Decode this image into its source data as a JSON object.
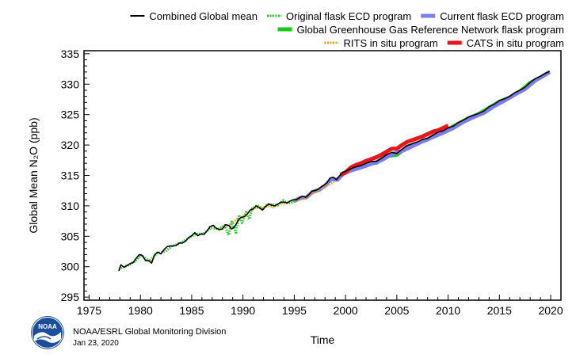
{
  "footer": {
    "organization": "NOAA/ESRL Global Monitoring Division",
    "date": "Jan 23, 2020",
    "logo_text": "NOAA"
  },
  "chart_data": {
    "type": "line",
    "title": "",
    "xlabel": "Time",
    "ylabel": "Global Mean N₂O (ppb)",
    "xlim": [
      1974.5,
      2021.0
    ],
    "ylim": [
      294.5,
      335.5
    ],
    "x_ticks": [
      1975,
      1980,
      1985,
      1990,
      1995,
      2000,
      2005,
      2010,
      2015,
      2020
    ],
    "y_ticks": [
      295,
      300,
      305,
      310,
      315,
      320,
      325,
      330,
      335
    ],
    "grid": false,
    "legend_position": "top-right",
    "series": [
      {
        "name": "Combined Global mean",
        "color": "#000000",
        "style": "solid",
        "x": [
          1977.9,
          1978.1,
          1978.4,
          1978.7,
          1979.0,
          1979.3,
          1979.6,
          1979.9,
          1980.2,
          1980.5,
          1980.8,
          1981.1,
          1981.4,
          1981.7,
          1982.0,
          1982.3,
          1982.6,
          1982.9,
          1983.2,
          1983.5,
          1983.8,
          1984.1,
          1984.4,
          1984.7,
          1985.0,
          1985.3,
          1985.6,
          1985.9,
          1986.2,
          1986.5,
          1986.8,
          1987.1,
          1987.4,
          1987.7,
          1988.0,
          1988.3,
          1988.6,
          1988.9,
          1989.2,
          1989.5,
          1989.8,
          1990.1,
          1990.4,
          1990.7,
          1991.0,
          1991.3,
          1991.6,
          1991.9,
          1992.2,
          1992.5,
          1992.8,
          1993.1,
          1993.4,
          1993.7,
          1994.0,
          1994.3,
          1994.6,
          1994.9,
          1995.2,
          1995.5,
          1995.8,
          1996.1,
          1996.4,
          1996.7,
          1997.0,
          1997.3,
          1997.6,
          1997.9,
          1998.2,
          1998.5,
          1998.8,
          1999.1,
          1999.4,
          1999.7,
          2000.0,
          2000.5,
          2001.0,
          2001.5,
          2002.0,
          2002.5,
          2003.0,
          2003.5,
          2004.0,
          2004.5,
          2005.0,
          2005.5,
          2006.0,
          2006.5,
          2007.0,
          2007.5,
          2008.0,
          2008.5,
          2009.0,
          2009.5,
          2010.0,
          2010.5,
          2011.0,
          2011.5,
          2012.0,
          2012.5,
          2013.0,
          2013.5,
          2014.0,
          2014.5,
          2015.0,
          2015.5,
          2016.0,
          2016.5,
          2017.0,
          2017.5,
          2018.0,
          2018.5,
          2019.0,
          2019.5,
          2019.9
        ],
        "y": [
          299.3,
          300.3,
          299.9,
          300.2,
          300.5,
          300.7,
          301.4,
          302.0,
          301.8,
          301.0,
          301.0,
          300.6,
          302.0,
          302.4,
          302.1,
          302.8,
          303.3,
          303.4,
          303.4,
          303.5,
          303.9,
          303.9,
          304.2,
          304.8,
          305.1,
          305.6,
          305.1,
          305.4,
          305.3,
          305.9,
          306.6,
          306.8,
          306.3,
          306.1,
          306.2,
          306.9,
          306.8,
          306.2,
          306.6,
          307.5,
          308.1,
          308.2,
          308.6,
          309.3,
          309.5,
          310.0,
          309.7,
          309.3,
          309.9,
          310.3,
          310.1,
          310.0,
          310.3,
          310.6,
          310.6,
          310.5,
          310.8,
          311.0,
          311.0,
          311.3,
          311.6,
          311.4,
          311.8,
          312.4,
          312.5,
          312.7,
          313.1,
          313.4,
          313.8,
          314.6,
          314.7,
          314.3,
          314.9,
          315.5,
          315.7,
          316.1,
          316.4,
          316.6,
          317.0,
          317.3,
          317.3,
          317.8,
          318.4,
          318.8,
          318.6,
          319.3,
          319.9,
          320.2,
          320.5,
          320.9,
          321.1,
          321.6,
          322.1,
          322.3,
          322.8,
          323.1,
          323.7,
          324.1,
          324.6,
          324.9,
          325.2,
          325.6,
          326.3,
          326.7,
          327.3,
          327.6,
          328.0,
          328.6,
          329.0,
          329.5,
          330.3,
          330.9,
          331.3,
          331.8,
          332.1
        ]
      },
      {
        "name": "Original flask ECD program",
        "color": "#22cc22",
        "style": "dotted",
        "x": [
          1977.9,
          1978.6,
          1979.4,
          1980.1,
          1980.9,
          1981.6,
          1982.4,
          1983.1,
          1983.9,
          1984.6,
          1985.4,
          1986.1,
          1986.9,
          1987.6,
          1988.2,
          1988.6,
          1988.9,
          1989.3,
          1989.6,
          1989.9,
          1990.3,
          1990.6,
          1990.9,
          1991.4,
          1991.9,
          1992.4,
          1992.9,
          1993.4,
          1993.9,
          1994.4,
          1994.9,
          1995.3
        ],
        "y": [
          299.6,
          300.1,
          300.8,
          301.9,
          300.9,
          302.2,
          302.5,
          303.4,
          303.9,
          304.6,
          305.4,
          305.4,
          306.4,
          306.2,
          306.8,
          305.2,
          307.4,
          305.6,
          308.5,
          307.2,
          309.0,
          307.8,
          309.6,
          310.1,
          309.4,
          310.3,
          310.2,
          310.1,
          310.9,
          310.4,
          310.6,
          311.2
        ]
      },
      {
        "name": "Current flask ECD program",
        "color": "#7b7cf0",
        "style": "solid-thick",
        "x": [
          1995.0,
          1995.6,
          1996.2,
          1996.8,
          1997.4,
          1998.0,
          1998.6,
          1999.2,
          1999.8,
          2000.5,
          2001.5,
          2002.5,
          2003.5,
          2004.5,
          2005.5,
          2006.5,
          2007.5,
          2008.5,
          2009.5,
          2010.5,
          2011.5,
          2012.5,
          2013.5,
          2014.5,
          2015.5,
          2016.5,
          2017.5,
          2018.5,
          2019.5,
          2019.9
        ],
        "y": [
          310.8,
          311.3,
          311.4,
          312.3,
          312.6,
          313.3,
          314.4,
          314.3,
          315.3,
          315.8,
          316.3,
          316.9,
          317.5,
          318.5,
          319.0,
          319.8,
          320.6,
          321.3,
          322.0,
          322.8,
          323.8,
          324.6,
          325.3,
          326.4,
          327.3,
          328.3,
          329.2,
          330.6,
          331.6,
          332.0
        ]
      },
      {
        "name": "Global Greenhouse Gas Reference Network flask program",
        "color": "#11cc11",
        "style": "solid-thick",
        "x": [
          2001.0,
          2002.0,
          2003.0,
          2004.0,
          2005.0,
          2006.0,
          2007.0,
          2008.0,
          2009.0,
          2010.0,
          2011.0,
          2012.0,
          2013.0,
          2014.0,
          2015.0,
          2016.0,
          2017.0,
          2018.0,
          2019.0,
          2019.9
        ],
        "y": [
          316.2,
          316.8,
          317.1,
          318.2,
          318.4,
          319.7,
          320.3,
          320.9,
          321.9,
          322.6,
          323.5,
          324.4,
          325.1,
          326.1,
          327.1,
          327.8,
          328.8,
          330.2,
          331.1,
          332.0
        ]
      },
      {
        "name": "RITS in situ program",
        "color": "#e8a31c",
        "style": "dotted",
        "x": [
          1987.6,
          1988.2,
          1988.8,
          1989.4,
          1990.0,
          1990.6,
          1991.2,
          1991.8,
          1992.4,
          1993.0,
          1993.6,
          1994.2,
          1994.8,
          1995.4,
          1996.0,
          1996.6,
          1997.2,
          1997.8,
          1998.4,
          1999.0
        ],
        "y": [
          306.0,
          306.6,
          306.9,
          307.8,
          308.3,
          309.0,
          309.7,
          309.6,
          310.0,
          309.8,
          310.4,
          310.4,
          310.8,
          311.0,
          311.2,
          311.9,
          312.4,
          313.0,
          313.5,
          314.1
        ]
      },
      {
        "name": "CATS in situ program",
        "color": "#e8161c",
        "style": "solid-thick",
        "x": [
          1999.5,
          2000.0,
          2000.5,
          2001.0,
          2001.5,
          2002.0,
          2002.5,
          2003.0,
          2003.5,
          2004.0,
          2004.5,
          2005.0,
          2005.5,
          2006.0,
          2006.5,
          2007.0,
          2007.5,
          2008.0,
          2008.5,
          2009.0,
          2009.5,
          2010.0
        ],
        "y": [
          315.1,
          315.5,
          316.3,
          316.7,
          317.0,
          317.4,
          317.7,
          318.0,
          318.4,
          318.9,
          319.4,
          319.4,
          320.0,
          320.5,
          320.8,
          321.1,
          321.4,
          321.8,
          322.2,
          322.4,
          322.8,
          323.2
        ]
      }
    ],
    "legend_rows": [
      [
        "Combined Global mean",
        "Original flask ECD program",
        "Current flask ECD program"
      ],
      [
        "Global Greenhouse Gas Reference Network flask program"
      ],
      [
        "RITS in situ program",
        "CATS in situ program"
      ]
    ]
  }
}
